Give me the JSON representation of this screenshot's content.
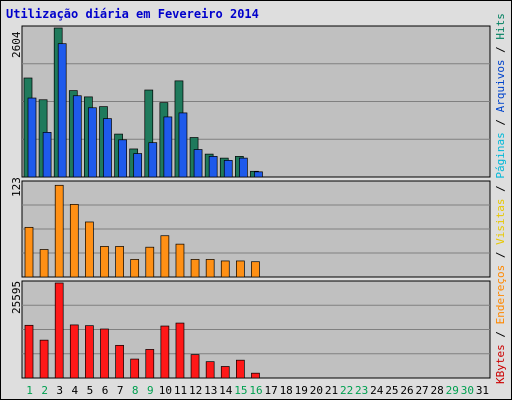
{
  "chart_data": {
    "title": "Utilização diária em Fevereiro 2014",
    "days": [
      "1",
      "2",
      "3",
      "4",
      "5",
      "6",
      "7",
      "8",
      "9",
      "10",
      "11",
      "12",
      "13",
      "14",
      "15",
      "16",
      "17",
      "18",
      "19",
      "20",
      "21",
      "22",
      "23",
      "24",
      "25",
      "26",
      "27",
      "28",
      "29",
      "30",
      "31"
    ],
    "weekend_days": [
      "1",
      "2",
      "8",
      "9",
      "15",
      "16",
      "22",
      "23",
      "29",
      "30"
    ],
    "panels": [
      {
        "name": "top",
        "type": "bar",
        "ymax_label": "2604",
        "ymax": 2604,
        "series": [
          {
            "name": "Hits",
            "color": "#1f7a5c",
            "values": [
              1730,
              1350,
              2604,
              1510,
              1400,
              1230,
              750,
              490,
              1520,
              1300,
              1680,
              690,
              400,
              330,
              360,
              100,
              0,
              0,
              0,
              0,
              0,
              0,
              0,
              0,
              0,
              0,
              0,
              0,
              0,
              0,
              0
            ]
          },
          {
            "name": "Arquivos",
            "color": "#1e5aeb",
            "values": [
              1380,
              780,
              2330,
              1420,
              1210,
              1020,
              650,
              410,
              600,
              1050,
              1120,
              480,
              360,
              290,
              330,
              90,
              0,
              0,
              0,
              0,
              0,
              0,
              0,
              0,
              0,
              0,
              0,
              0,
              0,
              0,
              0
            ]
          }
        ]
      },
      {
        "name": "middle",
        "type": "bar",
        "ymax_label": "123",
        "ymax": 123,
        "series": [
          {
            "name": "Endereços",
            "color": "#ff9015",
            "values": [
              65,
              36,
              120,
              95,
              72,
              40,
              40,
              23,
              39,
              54,
              43,
              23,
              23,
              21,
              21,
              20,
              0,
              0,
              0,
              0,
              0,
              0,
              0,
              0,
              0,
              0,
              0,
              0,
              0,
              0,
              0
            ]
          }
        ]
      },
      {
        "name": "bottom",
        "type": "bar",
        "ymax_label": "25595",
        "ymax": 25595,
        "series": [
          {
            "name": "KBytes",
            "color": "#ff1818",
            "values": [
              14200,
              10200,
              25595,
              14300,
              14100,
              13200,
              8800,
              5100,
              7700,
              14000,
              14800,
              6300,
              4400,
              3100,
              4800,
              1300,
              0,
              0,
              0,
              0,
              0,
              0,
              0,
              0,
              0,
              0,
              0,
              0,
              0,
              0,
              0
            ]
          }
        ]
      }
    ],
    "legend": [
      {
        "label": "KBytes",
        "color": "#cc0000"
      },
      {
        "label": "Endereços",
        "color": "#ff8800"
      },
      {
        "label": "Visitas",
        "color": "#e8c800"
      },
      {
        "label": "Páginas",
        "color": "#00b8d8"
      },
      {
        "label": "Arquivos",
        "color": "#0044cc"
      },
      {
        "label": "Hits",
        "color": "#008060"
      }
    ],
    "legend_separator": " / "
  },
  "colors": {
    "frame_bg": "#dedede",
    "plot_bg": "#c0c0c0",
    "weekend_label": "#00a050",
    "weekday_label": "#000000",
    "title": "#0000cc"
  }
}
